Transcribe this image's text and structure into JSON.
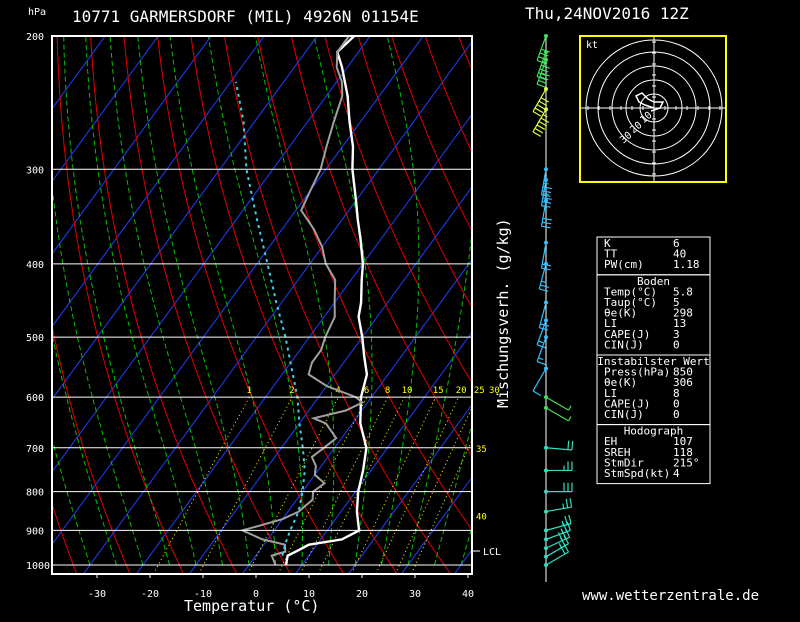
{
  "header": {
    "station": "10771 GARMERSDORF (MIL) 4926N 01154E",
    "datetime": "Thu,24NOV2016 12Z",
    "pressure_unit": "hPa"
  },
  "axes": {
    "xlabel": "Temperatur (°C)",
    "mix_label": "Mischungsverh. (g/kg)",
    "lcl_label": "LCL",
    "hodo_unit": "kt"
  },
  "footer": {
    "site": "www.wetterzentrale.de"
  },
  "colors": {
    "temperature": "#ffffff",
    "dewpoint": "#a0a0a0",
    "parcel": "#40d0e0",
    "isotherm": "#2040ff",
    "dry_adiabat": "#e00000",
    "moist_adiabat": "#00c000",
    "mixing_ratio": "#ffff00",
    "hodograph_frame": "#ffff00"
  },
  "stats": {
    "header_rows": [
      {
        "label": "K",
        "value": "6"
      },
      {
        "label": "TT",
        "value": "40"
      },
      {
        "label": "PW(cm)",
        "value": "1.18"
      }
    ],
    "boden_title": "Boden",
    "boden": [
      {
        "label": "Temp(°C)",
        "value": "5.8"
      },
      {
        "label": "Taup(°C)",
        "value": "5"
      },
      {
        "label": "θe(K)",
        "value": "298"
      },
      {
        "label": "LI",
        "value": "13"
      },
      {
        "label": "CAPE(J)",
        "value": "3"
      },
      {
        "label": "CIN(J)",
        "value": "0"
      }
    ],
    "instab_title": "Instabilster Wert",
    "instab": [
      {
        "label": "Press(hPa)",
        "value": "850"
      },
      {
        "label": "θe(K)",
        "value": "306"
      },
      {
        "label": "LI",
        "value": "8"
      },
      {
        "label": "CAPE(J)",
        "value": "0"
      },
      {
        "label": "CIN(J)",
        "value": "0"
      }
    ],
    "hodo_title": "Hodograph",
    "hodo": [
      {
        "label": "EH",
        "value": "107"
      },
      {
        "label": "SREH",
        "value": "118"
      },
      {
        "label": "StmDir",
        "value": "215°"
      },
      {
        "label": "StmSpd(kt)",
        "value": "4"
      }
    ]
  },
  "chart_data": {
    "type": "line",
    "title": "10771 GARMERSDORF (MIL) 4926N 01154E",
    "xlabel": "Temperatur (°C)",
    "ylabel": "hPa",
    "xlim": [
      -35,
      42
    ],
    "ylim": [
      1000,
      200
    ],
    "y_scale": "log",
    "x_ticks": [
      -30,
      -20,
      -10,
      0,
      10,
      20,
      30,
      40
    ],
    "y_ticks": [
      200,
      300,
      400,
      500,
      600,
      700,
      800,
      900,
      1000
    ],
    "mixing_ratio_labels": [
      "1",
      "2",
      "4",
      "6",
      "8",
      "10",
      "15",
      "20",
      "25",
      "30"
    ],
    "theta_labels": [
      {
        "text": "35",
        "p": 700
      },
      {
        "text": "40",
        "p": 860
      }
    ],
    "series": [
      {
        "name": "Temperatur",
        "color": "#ffffff",
        "points": [
          [
            1000,
            7
          ],
          [
            972,
            6
          ],
          [
            960,
            7
          ],
          [
            940,
            8.5
          ],
          [
            925,
            14
          ],
          [
            900,
            16
          ],
          [
            850,
            13
          ],
          [
            800,
            10.5
          ],
          [
            750,
            8.5
          ],
          [
            700,
            6
          ],
          [
            650,
            1.5
          ],
          [
            600,
            -2
          ],
          [
            560,
            -4
          ],
          [
            530,
            -7
          ],
          [
            500,
            -10
          ],
          [
            470,
            -13.5
          ],
          [
            450,
            -15
          ],
          [
            420,
            -18
          ],
          [
            400,
            -20
          ],
          [
            370,
            -24
          ],
          [
            350,
            -27
          ],
          [
            330,
            -30
          ],
          [
            300,
            -35
          ],
          [
            280,
            -38
          ],
          [
            260,
            -42
          ],
          [
            240,
            -46
          ],
          [
            220,
            -51
          ],
          [
            210,
            -54
          ],
          [
            200,
            -53
          ]
        ]
      },
      {
        "name": "Taupunkt",
        "color": "#a0a0a0",
        "points": [
          [
            1000,
            5
          ],
          [
            972,
            3
          ],
          [
            960,
            5
          ],
          [
            940,
            4
          ],
          [
            925,
            -1
          ],
          [
            900,
            -6
          ],
          [
            870,
            0
          ],
          [
            850,
            2
          ],
          [
            820,
            3
          ],
          [
            800,
            2
          ],
          [
            780,
            3
          ],
          [
            760,
            0
          ],
          [
            740,
            -1
          ],
          [
            720,
            -3
          ],
          [
            700,
            -2
          ],
          [
            680,
            -1
          ],
          [
            650,
            -5
          ],
          [
            640,
            -8
          ],
          [
            625,
            -3
          ],
          [
            610,
            -1
          ],
          [
            600,
            -3
          ],
          [
            580,
            -10
          ],
          [
            560,
            -15
          ],
          [
            540,
            -16
          ],
          [
            520,
            -16
          ],
          [
            500,
            -17
          ],
          [
            470,
            -18
          ],
          [
            450,
            -20
          ],
          [
            420,
            -23
          ],
          [
            400,
            -27
          ],
          [
            380,
            -30
          ],
          [
            360,
            -34
          ],
          [
            340,
            -39
          ],
          [
            320,
            -40
          ],
          [
            300,
            -41
          ],
          [
            280,
            -43
          ],
          [
            260,
            -45
          ],
          [
            240,
            -47
          ],
          [
            230,
            -49
          ],
          [
            220,
            -52
          ],
          [
            210,
            -54
          ],
          [
            200,
            -54
          ]
        ]
      },
      {
        "name": "Partikel",
        "color": "#40d0e0",
        "points": [
          [
            972,
            5
          ],
          [
            940,
            4
          ],
          [
            900,
            3
          ],
          [
            850,
            2
          ],
          [
            800,
            0
          ],
          [
            750,
            -2.5
          ],
          [
            700,
            -6
          ],
          [
            650,
            -10
          ],
          [
            600,
            -14
          ],
          [
            550,
            -19
          ],
          [
            500,
            -24.5
          ],
          [
            450,
            -31
          ],
          [
            400,
            -38
          ],
          [
            350,
            -46
          ],
          [
            300,
            -55
          ],
          [
            260,
            -62
          ],
          [
            230,
            -69
          ]
        ]
      }
    ],
    "wind_barbs": [
      {
        "p": 1000,
        "dir": 240,
        "speed": 20
      },
      {
        "p": 975,
        "dir": 240,
        "speed": 25
      },
      {
        "p": 950,
        "dir": 245,
        "speed": 30
      },
      {
        "p": 925,
        "dir": 250,
        "speed": 25
      },
      {
        "p": 900,
        "dir": 255,
        "speed": 25
      },
      {
        "p": 850,
        "dir": 260,
        "speed": 25
      },
      {
        "p": 800,
        "dir": 270,
        "speed": 30
      },
      {
        "p": 750,
        "dir": 270,
        "speed": 25
      },
      {
        "p": 700,
        "dir": 275,
        "speed": 20
      },
      {
        "p": 620,
        "dir": 300,
        "speed": 5
      },
      {
        "p": 600,
        "dir": 300,
        "speed": 5
      },
      {
        "p": 550,
        "dir": 30,
        "speed": 10
      },
      {
        "p": 500,
        "dir": 20,
        "speed": 15
      },
      {
        "p": 475,
        "dir": 20,
        "speed": 15
      },
      {
        "p": 450,
        "dir": 15,
        "speed": 20
      },
      {
        "p": 400,
        "dir": 15,
        "speed": 25
      },
      {
        "p": 375,
        "dir": 10,
        "speed": 20
      },
      {
        "p": 330,
        "dir": 10,
        "speed": 30
      },
      {
        "p": 310,
        "dir": 10,
        "speed": 35
      },
      {
        "p": 300,
        "dir": 10,
        "speed": 35
      },
      {
        "p": 250,
        "dir": 30,
        "speed": 55
      },
      {
        "p": 235,
        "dir": 30,
        "speed": 50
      },
      {
        "p": 215,
        "dir": 20,
        "speed": 40
      },
      {
        "p": 210,
        "dir": 20,
        "speed": 45
      },
      {
        "p": 200,
        "dir": 20,
        "speed": 40
      }
    ],
    "hodograph": {
      "ring_labels": [
        "10",
        "20",
        "30"
      ],
      "points": [
        [
          0,
          0
        ],
        [
          -3,
          1
        ],
        [
          -5,
          2
        ],
        [
          -6,
          4
        ],
        [
          -4,
          5
        ],
        [
          -2,
          3
        ],
        [
          0,
          2
        ],
        [
          3,
          2
        ],
        [
          2,
          0
        ],
        [
          -1,
          -1
        ]
      ]
    }
  }
}
